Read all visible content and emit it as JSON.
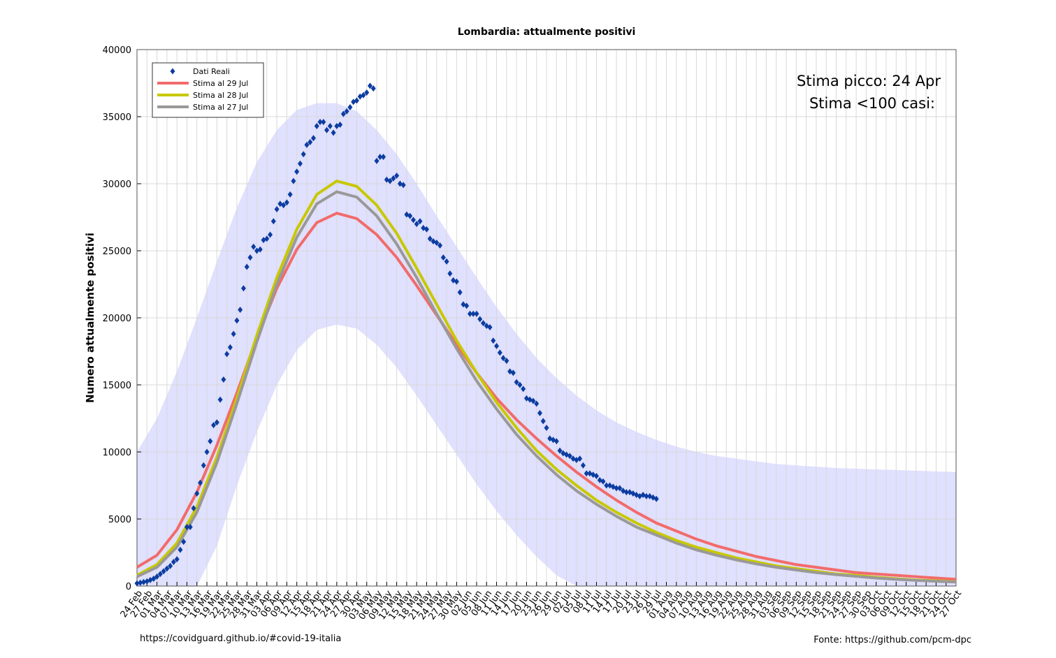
{
  "chart_data": {
    "type": "line",
    "title": "Lombardia: attualmente positivi",
    "y_label": "Numero attualmente positivi",
    "annotations": [
      "Stima picco: 24 Apr",
      "Stima <100 casi:"
    ],
    "footer_left": "https://covidguard.github.io/#covid-19-italia",
    "footer_right": "Fonte: https://github.com/pcm-dpc",
    "xlim": [
      0,
      246
    ],
    "ylim": [
      0,
      40000
    ],
    "grid": true,
    "legend": "top-left",
    "yticks": [
      0,
      5000,
      10000,
      15000,
      20000,
      25000,
      30000,
      35000,
      40000
    ],
    "xticks": [
      {
        "value": 0,
        "label": "24 Feb"
      },
      {
        "value": 3,
        "label": "27 Feb"
      },
      {
        "value": 6,
        "label": "01 Mar"
      },
      {
        "value": 9,
        "label": "04 Mar"
      },
      {
        "value": 12,
        "label": "07 Mar"
      },
      {
        "value": 15,
        "label": "10 Mar"
      },
      {
        "value": 18,
        "label": "13 Mar"
      },
      {
        "value": 21,
        "label": "16 Mar"
      },
      {
        "value": 24,
        "label": "19 Mar"
      },
      {
        "value": 27,
        "label": "22 Mar"
      },
      {
        "value": 30,
        "label": "25 Mar"
      },
      {
        "value": 33,
        "label": "28 Mar"
      },
      {
        "value": 36,
        "label": "31 Mar"
      },
      {
        "value": 39,
        "label": "03 Apr"
      },
      {
        "value": 42,
        "label": "06 Apr"
      },
      {
        "value": 45,
        "label": "09 Apr"
      },
      {
        "value": 48,
        "label": "12 Apr"
      },
      {
        "value": 51,
        "label": "15 Apr"
      },
      {
        "value": 54,
        "label": "18 Apr"
      },
      {
        "value": 57,
        "label": "21 Apr"
      },
      {
        "value": 60,
        "label": "24 Apr"
      },
      {
        "value": 63,
        "label": "27 Apr"
      },
      {
        "value": 66,
        "label": "30 Apr"
      },
      {
        "value": 69,
        "label": "03 May"
      },
      {
        "value": 72,
        "label": "06 May"
      },
      {
        "value": 75,
        "label": "09 May"
      },
      {
        "value": 78,
        "label": "12 May"
      },
      {
        "value": 81,
        "label": "15 May"
      },
      {
        "value": 84,
        "label": "18 May"
      },
      {
        "value": 87,
        "label": "21 May"
      },
      {
        "value": 90,
        "label": "24 May"
      },
      {
        "value": 93,
        "label": "27 May"
      },
      {
        "value": 96,
        "label": "30 May"
      },
      {
        "value": 99,
        "label": "02 Jun"
      },
      {
        "value": 102,
        "label": "05 Jun"
      },
      {
        "value": 105,
        "label": "08 Jun"
      },
      {
        "value": 108,
        "label": "11 Jun"
      },
      {
        "value": 111,
        "label": "14 Jun"
      },
      {
        "value": 114,
        "label": "17 Jun"
      },
      {
        "value": 117,
        "label": "20 Jun"
      },
      {
        "value": 120,
        "label": "23 Jun"
      },
      {
        "value": 123,
        "label": "26 Jun"
      },
      {
        "value": 126,
        "label": "29 Jun"
      },
      {
        "value": 129,
        "label": "02 Jul"
      },
      {
        "value": 132,
        "label": "05 Jul"
      },
      {
        "value": 135,
        "label": "08 Jul"
      },
      {
        "value": 138,
        "label": "11 Jul"
      },
      {
        "value": 141,
        "label": "14 Jul"
      },
      {
        "value": 144,
        "label": "17 Jul"
      },
      {
        "value": 147,
        "label": "20 Jul"
      },
      {
        "value": 150,
        "label": "23 Jul"
      },
      {
        "value": 153,
        "label": "26 Jul"
      },
      {
        "value": 156,
        "label": "29 Jul"
      },
      {
        "value": 159,
        "label": "01 Aug"
      },
      {
        "value": 162,
        "label": "04 Aug"
      },
      {
        "value": 165,
        "label": "07 Aug"
      },
      {
        "value": 168,
        "label": "10 Aug"
      },
      {
        "value": 171,
        "label": "13 Aug"
      },
      {
        "value": 174,
        "label": "16 Aug"
      },
      {
        "value": 177,
        "label": "19 Aug"
      },
      {
        "value": 180,
        "label": "22 Aug"
      },
      {
        "value": 183,
        "label": "25 Aug"
      },
      {
        "value": 186,
        "label": "28 Aug"
      },
      {
        "value": 189,
        "label": "31 Aug"
      },
      {
        "value": 192,
        "label": "03 Sep"
      },
      {
        "value": 195,
        "label": "06 Sep"
      },
      {
        "value": 198,
        "label": "09 Sep"
      },
      {
        "value": 201,
        "label": "12 Sep"
      },
      {
        "value": 204,
        "label": "15 Sep"
      },
      {
        "value": 207,
        "label": "18 Sep"
      },
      {
        "value": 210,
        "label": "21 Sep"
      },
      {
        "value": 213,
        "label": "24 Sep"
      },
      {
        "value": 216,
        "label": "27 Sep"
      },
      {
        "value": 219,
        "label": "30 Sep"
      },
      {
        "value": 222,
        "label": "03 Oct"
      },
      {
        "value": 225,
        "label": "06 Oct"
      },
      {
        "value": 228,
        "label": "09 Oct"
      },
      {
        "value": 231,
        "label": "12 Oct"
      },
      {
        "value": 234,
        "label": "15 Oct"
      },
      {
        "value": 237,
        "label": "18 Oct"
      },
      {
        "value": 240,
        "label": "21 Oct"
      },
      {
        "value": 243,
        "label": "24 Oct"
      },
      {
        "value": 246,
        "label": "27 Oct"
      }
    ],
    "band": {
      "color": "#e0e0ff",
      "x": [
        0,
        6,
        12,
        18,
        24,
        30,
        36,
        42,
        48,
        54,
        60,
        66,
        72,
        78,
        84,
        90,
        96,
        102,
        108,
        114,
        120,
        126,
        132,
        138,
        144,
        150,
        156,
        162,
        168,
        174,
        180,
        186,
        192,
        198,
        204,
        210,
        216,
        222,
        228,
        234,
        240,
        246
      ],
      "upper": [
        10000,
        12500,
        16000,
        20000,
        24200,
        28200,
        31600,
        34000,
        35500,
        36000,
        36000,
        35400,
        34000,
        32200,
        30000,
        27600,
        25300,
        23000,
        20800,
        18800,
        17000,
        15500,
        14200,
        13100,
        12200,
        11500,
        10900,
        10400,
        10000,
        9700,
        9500,
        9300,
        9100,
        9000,
        8900,
        8800,
        8750,
        8700,
        8650,
        8600,
        8550,
        8500
      ],
      "lower": [
        0,
        0,
        0,
        0,
        3000,
        7500,
        11500,
        15000,
        17600,
        19100,
        19500,
        19200,
        18000,
        16300,
        14200,
        12000,
        9800,
        7600,
        5600,
        3800,
        2200,
        800,
        0,
        0,
        0,
        0,
        0,
        0,
        0,
        0,
        0,
        0,
        0,
        0,
        0,
        0,
        0,
        0,
        0,
        0,
        0,
        0
      ]
    },
    "series": [
      {
        "name": "Dati Reali",
        "style": "markers",
        "color": "#0c3da0",
        "x": [
          0,
          1,
          2,
          3,
          4,
          5,
          6,
          7,
          8,
          9,
          10,
          11,
          12,
          13,
          14,
          15,
          16,
          17,
          18,
          19,
          20,
          21,
          22,
          23,
          24,
          25,
          26,
          27,
          28,
          29,
          30,
          31,
          32,
          33,
          34,
          35,
          36,
          37,
          38,
          39,
          40,
          41,
          42,
          43,
          44,
          45,
          46,
          47,
          48,
          49,
          50,
          51,
          52,
          53,
          54,
          55,
          56,
          57,
          58,
          59,
          60,
          61,
          62,
          63,
          64,
          65,
          66,
          67,
          68,
          69,
          70,
          71,
          72,
          73,
          74,
          75,
          76,
          77,
          78,
          79,
          80,
          81,
          82,
          83,
          84,
          85,
          86,
          87,
          88,
          89,
          90,
          91,
          92,
          93,
          94,
          95,
          96,
          97,
          98,
          99,
          100,
          101,
          102,
          103,
          104,
          105,
          106,
          107,
          108,
          109,
          110,
          111,
          112,
          113,
          114,
          115,
          116,
          117,
          118,
          119,
          120,
          121,
          122,
          123,
          124,
          125,
          126,
          127,
          128,
          129,
          130,
          131,
          132,
          133,
          134,
          135,
          136,
          137,
          138,
          139,
          140,
          141,
          142,
          143,
          144,
          145,
          146,
          147,
          148,
          149,
          150,
          151,
          152,
          153,
          154,
          155,
          156
        ],
        "values": [
          200,
          250,
          300,
          350,
          450,
          550,
          700,
          900,
          1100,
          1300,
          1500,
          1800,
          2000,
          2700,
          3300,
          4400,
          4400,
          5800,
          6900,
          7700,
          9000,
          10000,
          10800,
          12000,
          12200,
          13900,
          15400,
          17300,
          17800,
          18800,
          19800,
          20600,
          22200,
          23800,
          24500,
          25300,
          25000,
          25100,
          25800,
          25900,
          26200,
          27200,
          28100,
          28500,
          28400,
          28600,
          29200,
          30200,
          30900,
          31500,
          32200,
          32900,
          33100,
          33400,
          34300,
          34600,
          34600,
          34000,
          34300,
          33800,
          34300,
          34400,
          35200,
          35400,
          35700,
          36100,
          36200,
          36500,
          36600,
          36800,
          37300,
          37100,
          31700,
          32000,
          32000,
          30300,
          30200,
          30400,
          30600,
          30000,
          29900,
          27700,
          27600,
          27300,
          27000,
          27200,
          26700,
          26600,
          25900,
          25700,
          25600,
          25400,
          24500,
          24200,
          23300,
          22800,
          22700,
          21900,
          21000,
          20900,
          20300,
          20300,
          20300,
          19900,
          19600,
          19400,
          19300,
          18300,
          17900,
          17400,
          17000,
          16800,
          16000,
          15900,
          15200,
          15000,
          14700,
          14000,
          13900,
          13800,
          13600,
          12900,
          12300,
          11800,
          11000,
          10900,
          10800,
          10100,
          9900,
          9800,
          9700,
          9500,
          9400,
          9500,
          9000,
          8400,
          8400,
          8300,
          8200,
          7900,
          7800,
          7500,
          7500,
          7400,
          7300,
          7300,
          7100,
          7000,
          7000,
          6900,
          6800,
          6700,
          6800,
          6700,
          6700,
          6600,
          6500
        ]
      },
      {
        "name": "Stima al 29 Jul",
        "style": "line",
        "color": "#f26b6b",
        "x": [
          0,
          6,
          12,
          18,
          24,
          30,
          36,
          42,
          48,
          54,
          60,
          66,
          72,
          78,
          84,
          90,
          96,
          102,
          108,
          114,
          120,
          126,
          132,
          138,
          144,
          150,
          156,
          162,
          168,
          174,
          180,
          186,
          192,
          198,
          204,
          210,
          216,
          222,
          228,
          234,
          240,
          246
        ],
        "values": [
          1400,
          2300,
          4200,
          7000,
          10500,
          14400,
          18500,
          22200,
          25100,
          27100,
          27800,
          27400,
          26200,
          24500,
          22400,
          20200,
          18000,
          15900,
          14000,
          12400,
          11000,
          9700,
          8500,
          7400,
          6400,
          5500,
          4700,
          4100,
          3500,
          3000,
          2600,
          2200,
          1900,
          1600,
          1400,
          1200,
          1000,
          900,
          800,
          700,
          600,
          500
        ]
      },
      {
        "name": "Stima al 28 Jul",
        "style": "line",
        "color": "#c8c800",
        "x": [
          0,
          6,
          12,
          18,
          24,
          30,
          36,
          42,
          48,
          54,
          60,
          66,
          72,
          78,
          84,
          90,
          96,
          102,
          108,
          114,
          120,
          126,
          132,
          138,
          144,
          150,
          156,
          162,
          168,
          174,
          180,
          186,
          192,
          198,
          204,
          210,
          216,
          222,
          228,
          234,
          240,
          246
        ],
        "values": [
          800,
          1600,
          3200,
          5900,
          9600,
          14000,
          18700,
          23000,
          26600,
          29200,
          30200,
          29800,
          28400,
          26300,
          23700,
          21000,
          18300,
          15900,
          13700,
          11800,
          10100,
          8700,
          7500,
          6400,
          5500,
          4700,
          4000,
          3400,
          2900,
          2500,
          2100,
          1800,
          1500,
          1300,
          1100,
          900,
          800,
          650,
          550,
          450,
          400,
          320
        ]
      },
      {
        "name": "Stima al 27 Jul",
        "style": "line",
        "color": "#999999",
        "x": [
          0,
          6,
          12,
          18,
          24,
          30,
          36,
          42,
          48,
          54,
          60,
          66,
          72,
          78,
          84,
          90,
          96,
          102,
          108,
          114,
          120,
          126,
          132,
          138,
          144,
          150,
          156,
          162,
          168,
          174,
          180,
          186,
          192,
          198,
          204,
          210,
          216,
          222,
          228,
          234,
          240,
          246
        ],
        "values": [
          700,
          1400,
          2900,
          5500,
          9200,
          13600,
          18200,
          22500,
          26000,
          28500,
          29400,
          29000,
          27600,
          25500,
          23000,
          20300,
          17700,
          15300,
          13200,
          11300,
          9700,
          8300,
          7100,
          6100,
          5200,
          4400,
          3800,
          3200,
          2700,
          2300,
          1950,
          1650,
          1400,
          1200,
          1000,
          850,
          720,
          600,
          500,
          420,
          360,
          300
        ]
      }
    ]
  }
}
